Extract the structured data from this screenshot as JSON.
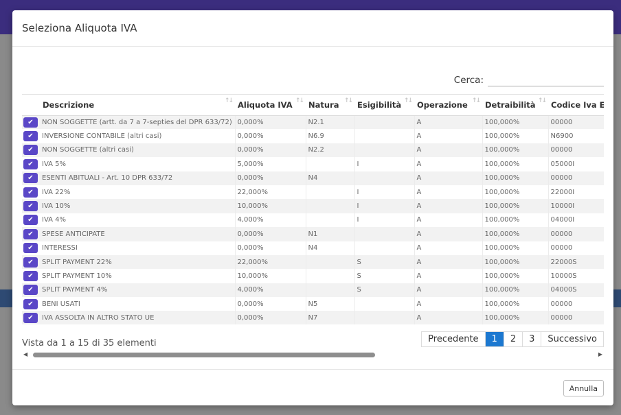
{
  "modal": {
    "title": "Seleziona Aliquota IVA",
    "search_label": "Cerca:",
    "search_value": "",
    "info": "Vista da 1 a 15 di 35 elementi",
    "pager": [
      "Precedente",
      "1",
      "2",
      "3",
      "Successivo"
    ],
    "cancel_label": "Annulla"
  },
  "table": {
    "headers": [
      "Descrizione",
      "Aliquota IVA",
      "Natura",
      "Esigibilità",
      "Operazione",
      "Detraibilità",
      "Codice Iva Es"
    ],
    "rows": [
      [
        "NON SOGGETTE (artt. da 7 a 7-septies del DPR 633/72)",
        "0,000%",
        "N2.1",
        "",
        "A",
        "100,000%",
        "00000"
      ],
      [
        "INVERSIONE CONTABILE (altri casi)",
        "0,000%",
        "N6.9",
        "",
        "A",
        "100,000%",
        "N6900"
      ],
      [
        "NON SOGGETTE (altri casi)",
        "0,000%",
        "N2.2",
        "",
        "A",
        "100,000%",
        "00000"
      ],
      [
        "IVA 5%",
        "5,000%",
        "",
        "I",
        "A",
        "100,000%",
        "05000I"
      ],
      [
        "ESENTI ABITUALI - Art. 10 DPR 633/72",
        "0,000%",
        "N4",
        "",
        "A",
        "100,000%",
        "00000"
      ],
      [
        "IVA 22%",
        "22,000%",
        "",
        "I",
        "A",
        "100,000%",
        "22000I"
      ],
      [
        "IVA 10%",
        "10,000%",
        "",
        "I",
        "A",
        "100,000%",
        "10000I"
      ],
      [
        "IVA 4%",
        "4,000%",
        "",
        "I",
        "A",
        "100,000%",
        "04000I"
      ],
      [
        "SPESE ANTICIPATE",
        "0,000%",
        "N1",
        "",
        "A",
        "100,000%",
        "00000"
      ],
      [
        "INTERESSI",
        "0,000%",
        "N4",
        "",
        "A",
        "100,000%",
        "00000"
      ],
      [
        "SPLIT PAYMENT 22%",
        "22,000%",
        "",
        "S",
        "A",
        "100,000%",
        "22000S"
      ],
      [
        "SPLIT PAYMENT 10%",
        "10,000%",
        "",
        "S",
        "A",
        "100,000%",
        "10000S"
      ],
      [
        "SPLIT PAYMENT 4%",
        "4,000%",
        "",
        "S",
        "A",
        "100,000%",
        "04000S"
      ],
      [
        "BENI USATI",
        "0,000%",
        "N5",
        "",
        "A",
        "100,000%",
        "00000"
      ],
      [
        "IVA ASSOLTA IN ALTRO STATO UE",
        "0,000%",
        "N7",
        "",
        "A",
        "100,000%",
        "00000"
      ]
    ]
  },
  "icons": {
    "select": "check-icon",
    "sort": "sort-arrows-icon"
  },
  "colors": {
    "accent": "#5a47c7",
    "pager_active": "#1c78d0",
    "header_bar": "#3b2d7e"
  }
}
